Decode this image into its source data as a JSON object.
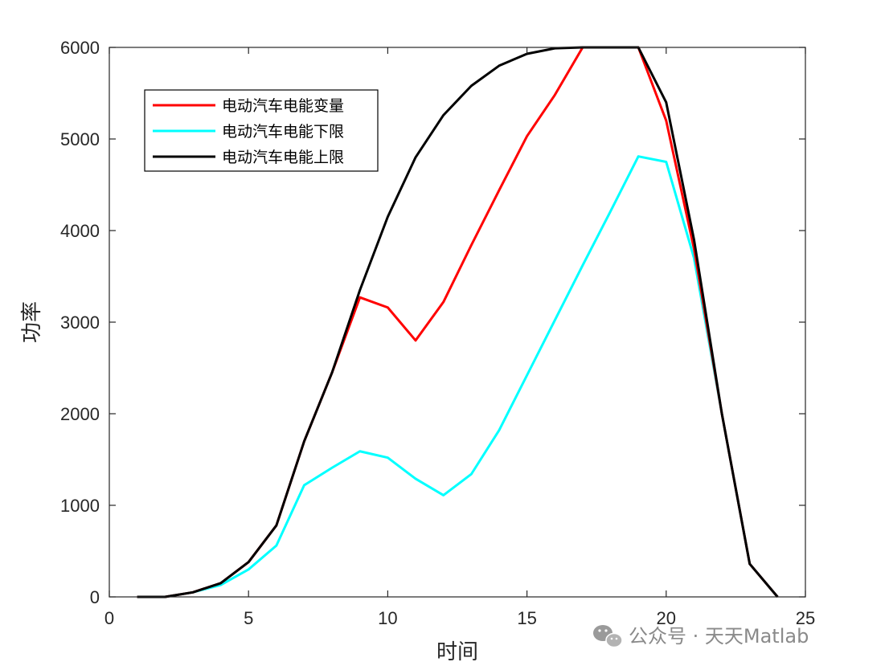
{
  "chart_data": {
    "type": "line",
    "title": "",
    "xlabel": "时间",
    "ylabel": "功率",
    "xlim": [
      0,
      25
    ],
    "ylim": [
      0,
      6000
    ],
    "xticks": [
      0,
      5,
      10,
      15,
      20,
      25
    ],
    "yticks": [
      0,
      1000,
      2000,
      3000,
      4000,
      5000,
      6000
    ],
    "x": [
      1,
      2,
      3,
      4,
      5,
      6,
      7,
      8,
      9,
      10,
      11,
      12,
      13,
      14,
      15,
      16,
      17,
      18,
      19,
      20,
      21,
      22,
      23,
      24
    ],
    "series": [
      {
        "name": "电动汽车电能变量",
        "color": "#ff0000",
        "values": [
          0,
          0,
          50,
          150,
          380,
          780,
          1700,
          2450,
          3270,
          3160,
          2800,
          3220,
          3840,
          4440,
          5030,
          5480,
          6000,
          6000,
          6000,
          5200,
          3800,
          2000,
          360,
          0
        ]
      },
      {
        "name": "电动汽车电能下限",
        "color": "#00ffff",
        "values": [
          0,
          0,
          50,
          130,
          300,
          560,
          1220,
          1410,
          1590,
          1520,
          1290,
          1110,
          1340,
          1820,
          2420,
          3020,
          3620,
          4210,
          4810,
          4750,
          3700,
          2000,
          360,
          0
        ]
      },
      {
        "name": "电动汽车电能上限",
        "color": "#000000",
        "values": [
          0,
          0,
          50,
          150,
          380,
          780,
          1700,
          2450,
          3350,
          4150,
          4800,
          5260,
          5580,
          5800,
          5930,
          5990,
          6000,
          6000,
          6000,
          5400,
          3900,
          2000,
          360,
          0
        ]
      }
    ],
    "legend_position": "top-left",
    "grid": false
  },
  "watermark": {
    "text": "公众号 · 天天Matlab",
    "icon": "wechat-icon"
  }
}
